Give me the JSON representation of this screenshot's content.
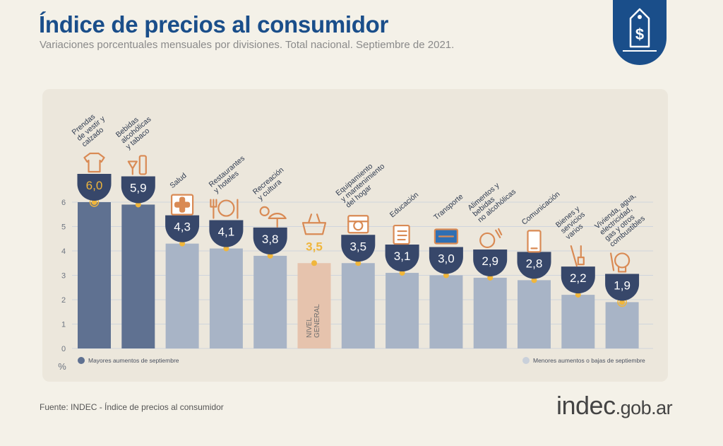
{
  "header": {
    "title": "Índice de precios al consumidor",
    "subtitle": "Variaciones porcentuales mensuales por divisiones. Total nacional. Septiembre de 2021."
  },
  "logo": {
    "icon": "price-tag-dollar-icon",
    "color": "#1a4e8a"
  },
  "footer": {
    "source": "Fuente: INDEC - Índice de precios al consumidor",
    "brand_main": "indec",
    "brand_suffix": ".gob.ar"
  },
  "chart_data": {
    "type": "bar",
    "unit": "%",
    "ylim": [
      0,
      6
    ],
    "yticks": [
      "0",
      "1",
      "2",
      "3",
      "4",
      "5",
      "6"
    ],
    "grid": true,
    "categories": [
      "Prendas de vestir y calzado",
      "Bebidas alcohólicas y tabaco",
      "Salud",
      "Restaurantes y hoteles",
      "Recreación y cultura",
      "NIVEL GENERAL",
      "Equipamiento y mantenimiento del hogar",
      "Educación",
      "Transporte",
      "Alimentos y bebidas no alcohólicas",
      "Comunicación",
      "Bienes y servicios varios",
      "Vivienda, agua, electricidad, gas y otros combustibles"
    ],
    "category_label_lines": [
      [
        "Prendas",
        "de vestir y",
        "calzado"
      ],
      [
        "Bebidas",
        "alcohólicas",
        "y tabaco"
      ],
      [
        "Salud"
      ],
      [
        "Restaurantes",
        "y hoteles"
      ],
      [
        "Recreación",
        "y cultura"
      ],
      [
        "NIVEL",
        "GENERAL"
      ],
      [
        "Equipamiento",
        "y mantenimiento",
        "del hogar"
      ],
      [
        "Educación"
      ],
      [
        "Transporte"
      ],
      [
        "Alimentos y",
        "bebidas",
        "no alcohólicas"
      ],
      [
        "Comunicación"
      ],
      [
        "Bienes y",
        "servicios",
        "varios"
      ],
      [
        "Vivienda, agua,",
        "electricidad,",
        "gas y otros",
        "combustibles"
      ]
    ],
    "values": [
      6.0,
      5.9,
      4.3,
      4.1,
      3.8,
      3.5,
      3.5,
      3.1,
      3.0,
      2.9,
      2.8,
      2.2,
      1.9
    ],
    "value_labels": [
      "6,0",
      "5,9",
      "4,3",
      "4,1",
      "3,8",
      "3,5",
      "3,5",
      "3,1",
      "3,0",
      "2,9",
      "2,8",
      "2,2",
      "1,9"
    ],
    "group": [
      "high",
      "high",
      "other",
      "other",
      "other",
      "general",
      "other",
      "other",
      "other",
      "other",
      "other",
      "other",
      "low"
    ],
    "icons": [
      "clothing-icon",
      "drinks-icon",
      "first-aid-icon",
      "dining-icon",
      "leisure-icon",
      "shopping-bag-icon",
      "home-tools-icon",
      "books-icon",
      "transport-card-icon",
      "food-icon",
      "mobile-phone-icon",
      "comb-brush-icon",
      "lightbulb-icon"
    ],
    "legend": [
      {
        "label": "Mayores aumentos de septiembre",
        "color": "#5f7191",
        "position": "bottom-left"
      },
      {
        "label": "Menores aumentos o bajas de septiembre",
        "color": "#c9d0da",
        "position": "bottom-right"
      }
    ],
    "colors": {
      "high": "#5f7191",
      "other": "#a8b4c6",
      "general": "#e6c3ad",
      "badge": "#37476a",
      "badge_general_text": "#f0b63c",
      "marker": "#f0b63c",
      "grid": "#cfd5dd",
      "icon": "#d98a54"
    }
  }
}
